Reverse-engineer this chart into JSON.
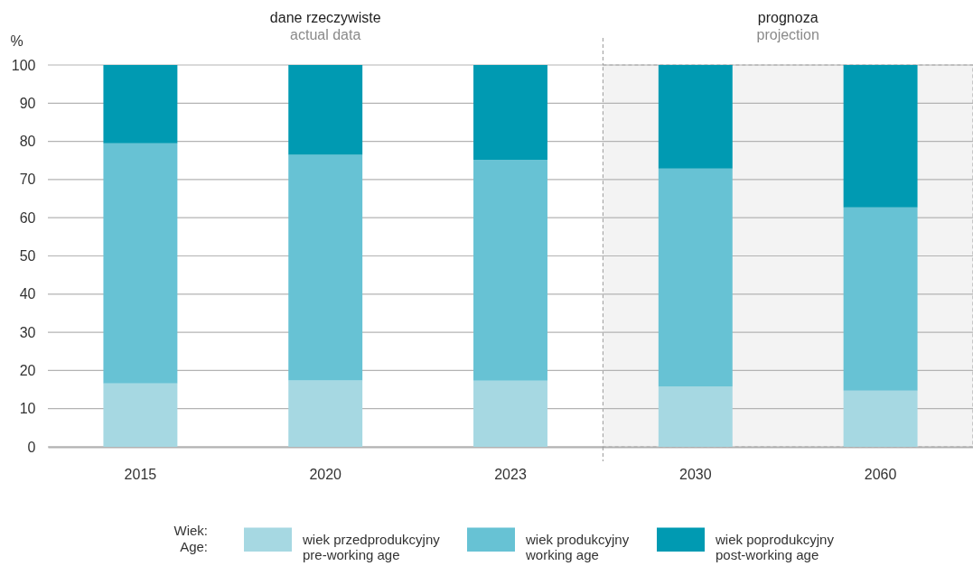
{
  "chart_data": {
    "type": "bar",
    "stacked": true,
    "ylabel": "%",
    "legend_title": "Wiek:\nAge:",
    "legend": "bottom",
    "grid": "y",
    "categories": [
      "2015",
      "2020",
      "2023",
      "2030",
      "2060"
    ],
    "series": [
      {
        "name": "wiek przedprodukcyjny\npre-working age",
        "color": "#a6d8e2",
        "values": [
          16.6,
          17.4,
          17.3,
          15.8,
          14.7
        ]
      },
      {
        "name": "wiek produkcyjny\nworking age",
        "color": "#67c2d4",
        "values": [
          62.9,
          59.1,
          57.8,
          57.1,
          48.0
        ]
      },
      {
        "name": "wiek poprodukcyjny\npost-working age",
        "color": "#009ab2",
        "values": [
          20.5,
          23.5,
          24.9,
          27.1,
          37.3
        ]
      }
    ],
    "ylim": [
      0,
      100
    ],
    "yticks": [
      0,
      10,
      20,
      30,
      40,
      50,
      60,
      70,
      80,
      90,
      100
    ],
    "annotations": [
      "dane rzeczywiste\nactual data"
    ],
    "bands": [
      {
        "axis": "x",
        "from": "2030",
        "to": "2060",
        "label": "prognoza\nprojection",
        "color": "#f3f3f3"
      }
    ]
  }
}
